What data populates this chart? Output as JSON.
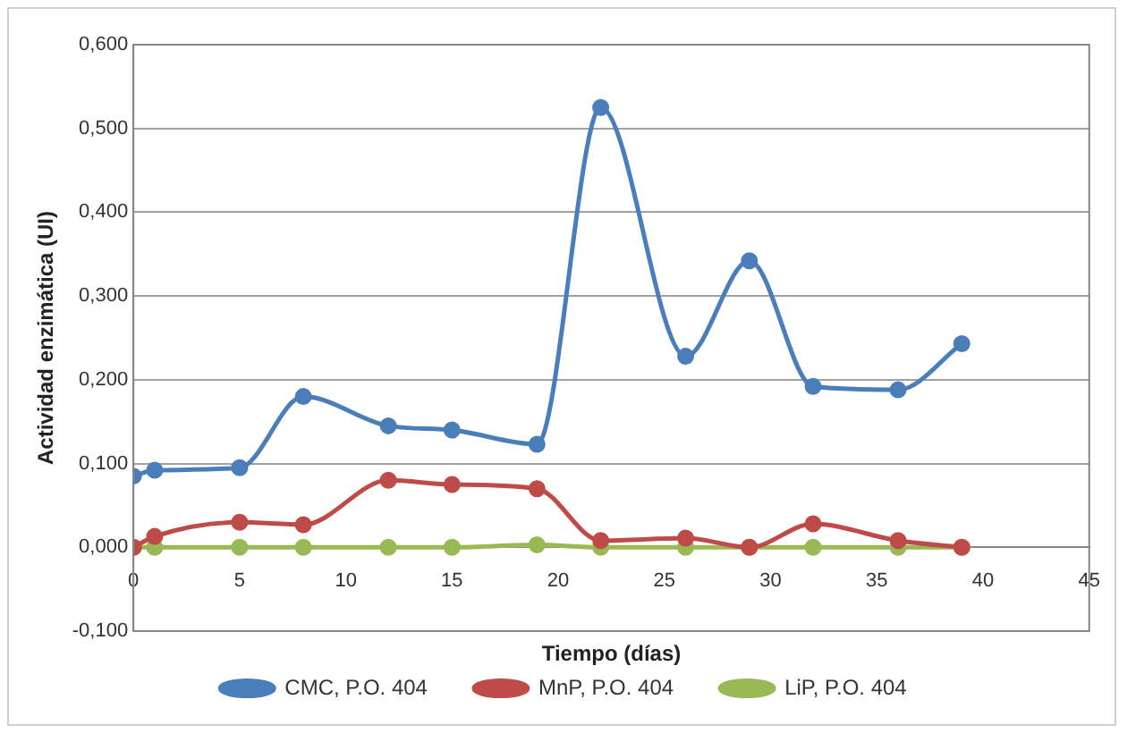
{
  "chart_data": {
    "type": "line",
    "xlabel": "Tiempo (días)",
    "ylabel": "Actividad enzimática (UI)",
    "x": [
      0,
      1,
      5,
      8,
      12,
      15,
      19,
      22,
      26,
      29,
      32,
      36,
      39
    ],
    "series": [
      {
        "name": "CMC, P.O. 404",
        "color": "#4a7ebb",
        "values": [
          0.085,
          0.092,
          0.095,
          0.18,
          0.145,
          0.14,
          0.123,
          0.525,
          0.228,
          0.342,
          0.192,
          0.188,
          0.243
        ]
      },
      {
        "name": "MnP, P.O. 404",
        "color": "#be4b48",
        "values": [
          0,
          0.013,
          0.03,
          0.027,
          0.08,
          0.075,
          0.07,
          0.008,
          0.011,
          0,
          0.028,
          0.008,
          0
        ]
      },
      {
        "name": "LiP, P.O. 404",
        "color": "#98b954",
        "values": [
          0,
          0,
          0,
          0,
          0,
          0,
          0.003,
          0,
          0,
          0,
          0,
          0,
          0
        ]
      }
    ],
    "xlim": [
      0,
      45
    ],
    "xticks": [
      0,
      5,
      10,
      15,
      20,
      25,
      30,
      35,
      40,
      45
    ],
    "ylim": [
      -0.1,
      0.6
    ],
    "yticks": [
      {
        "value": -0.1,
        "label": "-0,100"
      },
      {
        "value": 0,
        "label": "0,000"
      },
      {
        "value": 0.1,
        "label": "0,100"
      },
      {
        "value": 0.2,
        "label": "0,200"
      },
      {
        "value": 0.3,
        "label": "0,300"
      },
      {
        "value": 0.4,
        "label": "0,400"
      },
      {
        "value": 0.5,
        "label": "0,500"
      },
      {
        "value": 0.6,
        "label": "0,600"
      }
    ],
    "grid": "y",
    "legend": "bottom",
    "marker": "circle",
    "line_style": "solid"
  }
}
